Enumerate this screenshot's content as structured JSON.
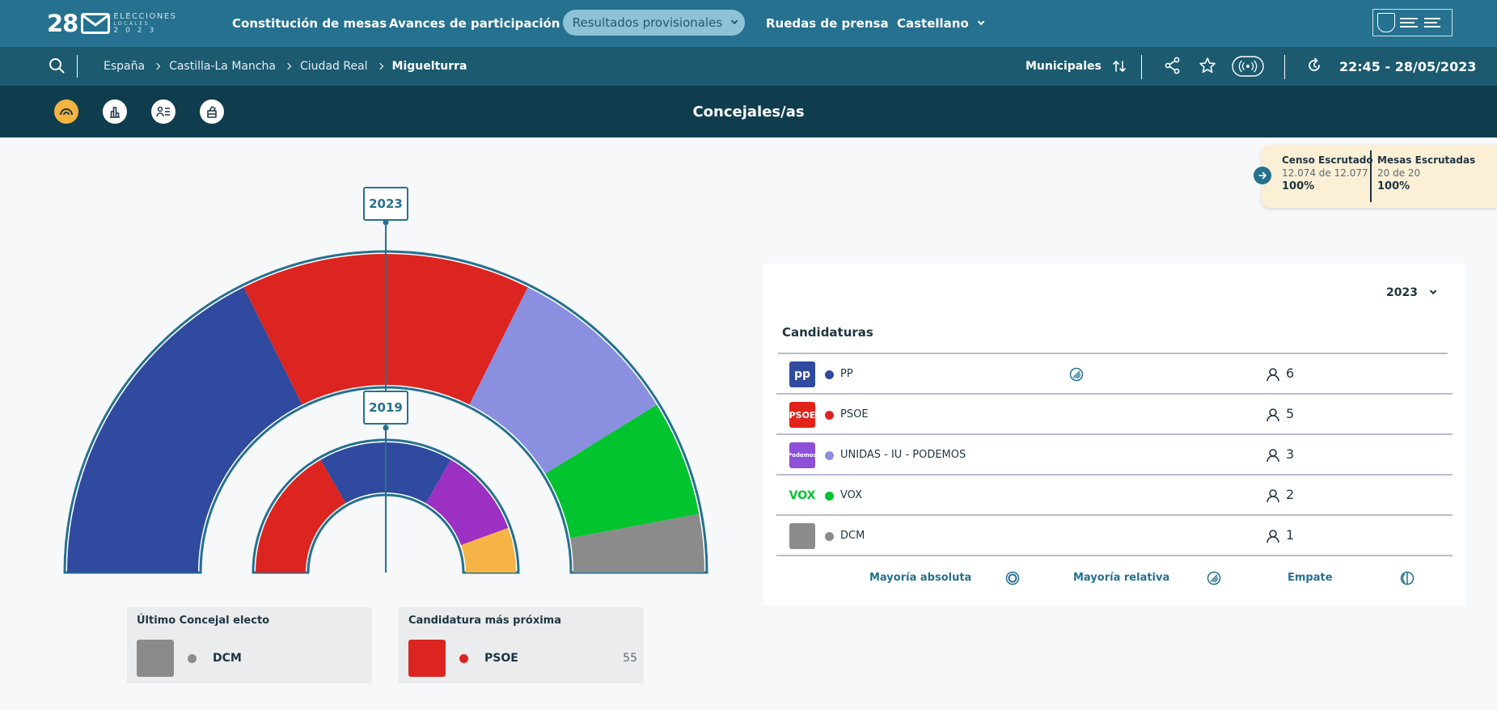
{
  "logo": {
    "number": "28",
    "line1": "ELECCIONES",
    "line2": "LOCALES",
    "line3": "2023"
  },
  "nav": {
    "items": [
      {
        "label": "Constitución de mesas"
      },
      {
        "label": "Avances de participación"
      },
      {
        "label": "Resultados provisionales"
      },
      {
        "label": "Ruedas de prensa"
      },
      {
        "label": "Castellano"
      }
    ]
  },
  "breadcrumb": [
    "España",
    "Castilla-La Mancha",
    "Ciudad Real",
    "Miguelturra"
  ],
  "election_type": "Municipales",
  "timestamp": "22:45 - 28/05/2023",
  "section_title": "Concejales/as",
  "escrutinio": {
    "censo": {
      "title": "Censo Escrutado",
      "value": "12.074 de 12.077",
      "pct": "100%"
    },
    "mesas": {
      "title": "Mesas Escrutadas",
      "value": "20 de 20",
      "pct": "100%"
    }
  },
  "hemicycle": {
    "years": {
      "outer": "2023",
      "inner": "2019"
    },
    "outer_seats": [
      {
        "party": "PP",
        "seats": 6,
        "color": "#2f4a9e"
      },
      {
        "party": "PSOE",
        "seats": 5,
        "color": "#dc2520"
      },
      {
        "party": "UNIDAS - IU - PODEMOS",
        "seats": 3,
        "color": "#8a8fe0"
      },
      {
        "party": "VOX",
        "seats": 2,
        "color": "#02c42e"
      },
      {
        "party": "DCM",
        "seats": 1,
        "color": "#8b8b8b"
      }
    ],
    "inner_seats": [
      {
        "seats": 3,
        "color": "#dc2520"
      },
      {
        "seats": 3,
        "color": "#2f4a9e"
      },
      {
        "seats": 2,
        "color": "#9b30c2"
      },
      {
        "seats": 1,
        "color": "#f6b447"
      }
    ]
  },
  "last_elected": {
    "title": "Último Concejal electo",
    "party": "DCM",
    "color": "#8b8b8b"
  },
  "next_candidate": {
    "title": "Candidatura más próxima",
    "party": "PSOE",
    "value": "55",
    "color": "#dc2520"
  },
  "results": {
    "year": "2023",
    "header": "Candidaturas",
    "rows": [
      {
        "name": "PP",
        "seats": "6",
        "color": "#2f4a9e",
        "logo_text": "pp",
        "logo_bg": "#2f4a9e",
        "majority": "relativa"
      },
      {
        "name": "PSOE",
        "seats": "5",
        "color": "#dc2520",
        "logo_text": "PSOE",
        "logo_bg": "#e2231a",
        "majority": ""
      },
      {
        "name": "UNIDAS - IU - PODEMOS",
        "seats": "3",
        "color": "#8a8fe0",
        "logo_text": "Podemos",
        "logo_bg": "#8e4fd9",
        "majority": ""
      },
      {
        "name": "VOX",
        "seats": "2",
        "color": "#02c42e",
        "logo_text": "VOX",
        "logo_bg": "#ffffff",
        "majority": ""
      },
      {
        "name": "DCM",
        "seats": "1",
        "color": "#8b8b8b",
        "logo_text": "",
        "logo_bg": "#8b8b8b",
        "majority": ""
      }
    ],
    "legend": {
      "absoluta": "Mayoría absoluta",
      "relativa": "Mayoría relativa",
      "empate": "Empate"
    }
  }
}
